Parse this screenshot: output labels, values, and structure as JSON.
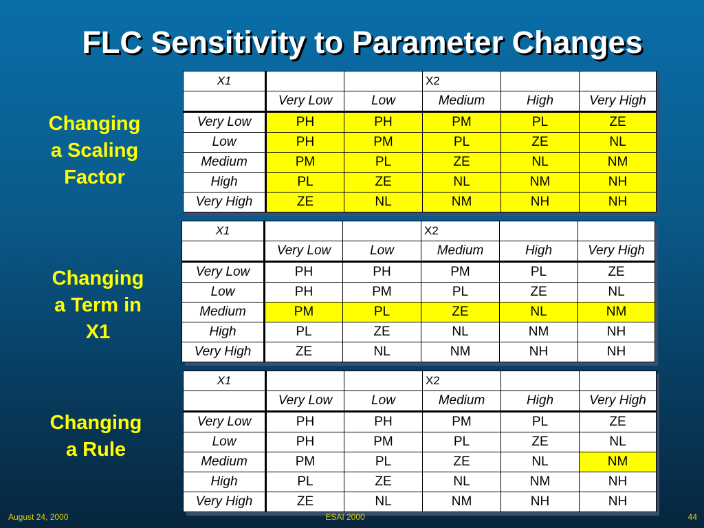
{
  "title": "FLC Sensitivity to Parameter Changes",
  "highlight_color": "#ffff00",
  "header": {
    "x1": "X1",
    "x2": "X2"
  },
  "x2_terms": [
    "Very Low",
    "Low",
    "Medium",
    "High",
    "Very High"
  ],
  "x1_terms": [
    "Very Low",
    "Low",
    "Medium",
    "High",
    "Very High"
  ],
  "panels": [
    {
      "label": "Changing\na Scaling\nFactor",
      "highlight": "all",
      "rows": [
        [
          "PH",
          "PH",
          "PM",
          "PL",
          "ZE"
        ],
        [
          "PH",
          "PM",
          "PL",
          "ZE",
          "NL"
        ],
        [
          "PM",
          "PL",
          "ZE",
          "NL",
          "NM"
        ],
        [
          "PL",
          "ZE",
          "NL",
          "NM",
          "NH"
        ],
        [
          "ZE",
          "NL",
          "NM",
          "NH",
          "NH"
        ]
      ]
    },
    {
      "label": "Changing\na Term in\nX1",
      "highlight": "row 3 (Medium)",
      "rows": [
        [
          "PH",
          "PH",
          "PM",
          "PL",
          "ZE"
        ],
        [
          "PH",
          "PM",
          "PL",
          "ZE",
          "NL"
        ],
        [
          "PM",
          "PL",
          "ZE",
          "NL",
          "NM"
        ],
        [
          "PL",
          "ZE",
          "NL",
          "NM",
          "NH"
        ],
        [
          "ZE",
          "NL",
          "NM",
          "NH",
          "NH"
        ]
      ]
    },
    {
      "label": "Changing\na Rule",
      "highlight": "cell Medium / Very High",
      "rows": [
        [
          "PH",
          "PH",
          "PM",
          "PL",
          "ZE"
        ],
        [
          "PH",
          "PM",
          "PL",
          "ZE",
          "NL"
        ],
        [
          "PM",
          "PL",
          "ZE",
          "NL",
          "NM"
        ],
        [
          "PL",
          "ZE",
          "NL",
          "NM",
          "NH"
        ],
        [
          "ZE",
          "NL",
          "NM",
          "NH",
          "NH"
        ]
      ]
    }
  ],
  "footer": {
    "date": "August 24, 2000",
    "event": "ESAI 2000",
    "page": "44"
  }
}
